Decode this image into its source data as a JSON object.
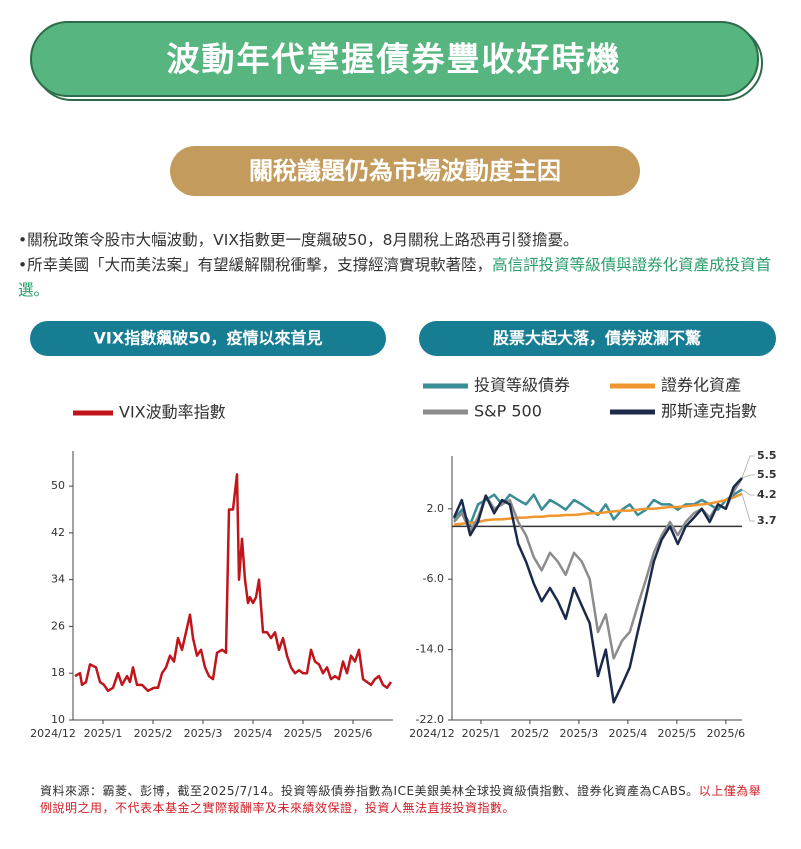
{
  "header": {
    "title": "波動年代掌握債券豐收好時機",
    "subtitle": "關稅議題仍為市場波動度主因"
  },
  "bullets": [
    {
      "text": "關稅政策令股市大幅波動，VIX指數更一度飆破50，8月關稅上路恐再引發擔憂。"
    },
    {
      "text": "所幸美國「大而美法案」有望緩解關稅衝擊，支撐經濟實現軟著陸，",
      "highlight": "高信評投資等級債與證券化資產成投資首選。"
    }
  ],
  "chart_data": [
    {
      "type": "line",
      "title": "VIX指數飆破50，疫情以來首見",
      "x": [
        0.44,
        0.54,
        0.58,
        0.66,
        0.74,
        0.86,
        0.94,
        1.02,
        1.1,
        1.2,
        1.3,
        1.38,
        1.48,
        1.54,
        1.6,
        1.68,
        1.78,
        1.9,
        2.02,
        2.1,
        2.18,
        2.26,
        2.34,
        2.42,
        2.5,
        2.58,
        2.66,
        2.74,
        2.8,
        2.88,
        2.96,
        3.04,
        3.12,
        3.2,
        3.28,
        3.38,
        3.46,
        3.52,
        3.6,
        3.68,
        3.72,
        3.78,
        3.84,
        3.9,
        3.94,
        4.0,
        4.06,
        4.12,
        4.2,
        4.28,
        4.36,
        4.44,
        4.52,
        4.6,
        4.68,
        4.76,
        4.84,
        4.92,
        5.0,
        5.08,
        5.16,
        5.24,
        5.32,
        5.4,
        5.48,
        5.56,
        5.64,
        5.72,
        5.8,
        5.88,
        5.96,
        6.04,
        6.12,
        6.2,
        6.28,
        6.36,
        6.44,
        6.52,
        6.6,
        6.68,
        6.76
      ],
      "series": [
        {
          "name": "VIX波動率指數",
          "color": "#c0151b",
          "values": [
            17.5,
            18,
            16,
            16.5,
            19.5,
            19,
            16.5,
            16,
            15,
            15.5,
            18,
            16,
            17.5,
            16.5,
            19,
            16,
            16,
            15,
            15.5,
            15.5,
            18,
            19,
            21,
            20,
            24,
            22,
            25,
            28,
            24,
            21,
            22,
            19,
            17.5,
            17,
            21.5,
            22,
            21.5,
            46,
            46,
            52,
            34,
            41,
            34,
            30,
            31,
            30,
            31,
            34,
            25,
            25,
            24,
            25,
            22,
            24,
            21,
            19,
            18,
            18.5,
            18,
            18,
            22,
            20,
            19.5,
            18,
            19,
            17,
            17.5,
            17,
            20,
            18,
            21,
            20,
            22,
            17,
            16.5,
            16,
            17,
            17.5,
            16,
            15.5,
            16.5
          ]
        }
      ],
      "xlim": [
        0.4,
        6.8
      ],
      "xticks": [
        {
          "value": 0,
          "label": "2024/12"
        },
        {
          "value": 1,
          "label": "2025/1"
        },
        {
          "value": 2,
          "label": "2025/2"
        },
        {
          "value": 3,
          "label": "2025/3"
        },
        {
          "value": 4,
          "label": "2025/4"
        },
        {
          "value": 5,
          "label": "2025/5"
        },
        {
          "value": 6,
          "label": "2025/6"
        }
      ],
      "ylim": [
        10,
        56
      ],
      "yticks": [
        10,
        18,
        26,
        34,
        42,
        50
      ]
    },
    {
      "type": "line",
      "title": "股票大起大落，債券波瀾不驚",
      "x": [
        0.45,
        0.61,
        0.78,
        0.94,
        1.1,
        1.27,
        1.43,
        1.59,
        1.76,
        1.92,
        2.08,
        2.24,
        2.41,
        2.57,
        2.73,
        2.9,
        3.06,
        3.22,
        3.39,
        3.55,
        3.71,
        3.88,
        4.04,
        4.2,
        4.37,
        4.53,
        4.69,
        4.86,
        5.02,
        5.18,
        5.35,
        5.51,
        5.67,
        5.84,
        6.0,
        6.16,
        6.33
      ],
      "series": [
        {
          "name": "投資等級債券",
          "color": "#3a8c96",
          "values": [
            0.8,
            1.9,
            0.2,
            2.5,
            3.0,
            3.6,
            2.5,
            3.6,
            3.0,
            2.5,
            3.6,
            1.9,
            3.0,
            2.5,
            1.9,
            3.0,
            2.5,
            1.9,
            1.3,
            2.5,
            0.8,
            1.9,
            2.5,
            1.3,
            1.9,
            3.0,
            2.5,
            2.5,
            1.9,
            2.5,
            2.5,
            3.0,
            2.5,
            1.9,
            3.0,
            3.6,
            4.2
          ]
        },
        {
          "name": "證券化資產",
          "color": "#f0962e",
          "values": [
            0.2,
            0.3,
            0.4,
            0.5,
            0.7,
            0.8,
            0.8,
            0.9,
            1.0,
            1.0,
            1.1,
            1.1,
            1.2,
            1.2,
            1.3,
            1.3,
            1.4,
            1.5,
            1.5,
            1.6,
            1.7,
            1.8,
            1.8,
            1.9,
            2.0,
            2.0,
            2.1,
            2.2,
            2.2,
            2.3,
            2.4,
            2.5,
            2.6,
            2.8,
            3.0,
            3.3,
            3.7
          ]
        },
        {
          "name": "S&P 500",
          "color": "#8c8c8c",
          "values": [
            0.5,
            1.5,
            -0.5,
            1.0,
            3.5,
            2.0,
            2.5,
            3.0,
            0.5,
            -1.0,
            -3.5,
            -5.0,
            -3.0,
            -4.0,
            -5.5,
            -3.0,
            -4.0,
            -6.0,
            -12.0,
            -10.0,
            -15.0,
            -13.0,
            -12.0,
            -9.0,
            -6.0,
            -3.0,
            -1.0,
            0.5,
            -1.0,
            0.5,
            1.5,
            2.0,
            1.0,
            2.5,
            2.0,
            4.0,
            5.5
          ]
        },
        {
          "name": "那斯達克指數",
          "color": "#1b2a4a",
          "values": [
            1.0,
            3.0,
            -1.0,
            0.5,
            3.5,
            1.5,
            3.0,
            2.5,
            -2.0,
            -4.0,
            -6.5,
            -8.5,
            -7.0,
            -8.5,
            -10.5,
            -7.0,
            -9.0,
            -11.0,
            -17.0,
            -14.0,
            -20.0,
            -18.0,
            -16.0,
            -12.0,
            -8.0,
            -4.0,
            -1.5,
            0.0,
            -2.0,
            0.0,
            1.0,
            2.0,
            0.5,
            2.5,
            2.0,
            4.5,
            5.5
          ]
        }
      ],
      "xlim": [
        0.45,
        6.33
      ],
      "xticks": [
        {
          "value": 0,
          "label": "2024/12"
        },
        {
          "value": 1,
          "label": "2025/1"
        },
        {
          "value": 2,
          "label": "2025/2"
        },
        {
          "value": 3,
          "label": "2025/3"
        },
        {
          "value": 4,
          "label": "2025/4"
        },
        {
          "value": 5,
          "label": "2025/5"
        },
        {
          "value": 6,
          "label": "2025/6"
        }
      ],
      "ylim": [
        -22,
        8
      ],
      "yticks": [
        {
          "value": -22,
          "label": "-22.0"
        },
        {
          "value": -14,
          "label": "-14.0"
        },
        {
          "value": -6,
          "label": "-6.0"
        },
        {
          "value": 2,
          "label": "2.0"
        }
      ]
    }
  ],
  "footer": {
    "source": "資料來源：霸菱、彭博，截至2025/7/14。投資等級債券指數為ICE美銀美林全球投資級債指數、證券化資產為CABS。",
    "disclaimer": "以上僅為舉例說明之用，不代表本基金之實際報酬率及未來績效保證，投資人無法直接投資指數。"
  }
}
